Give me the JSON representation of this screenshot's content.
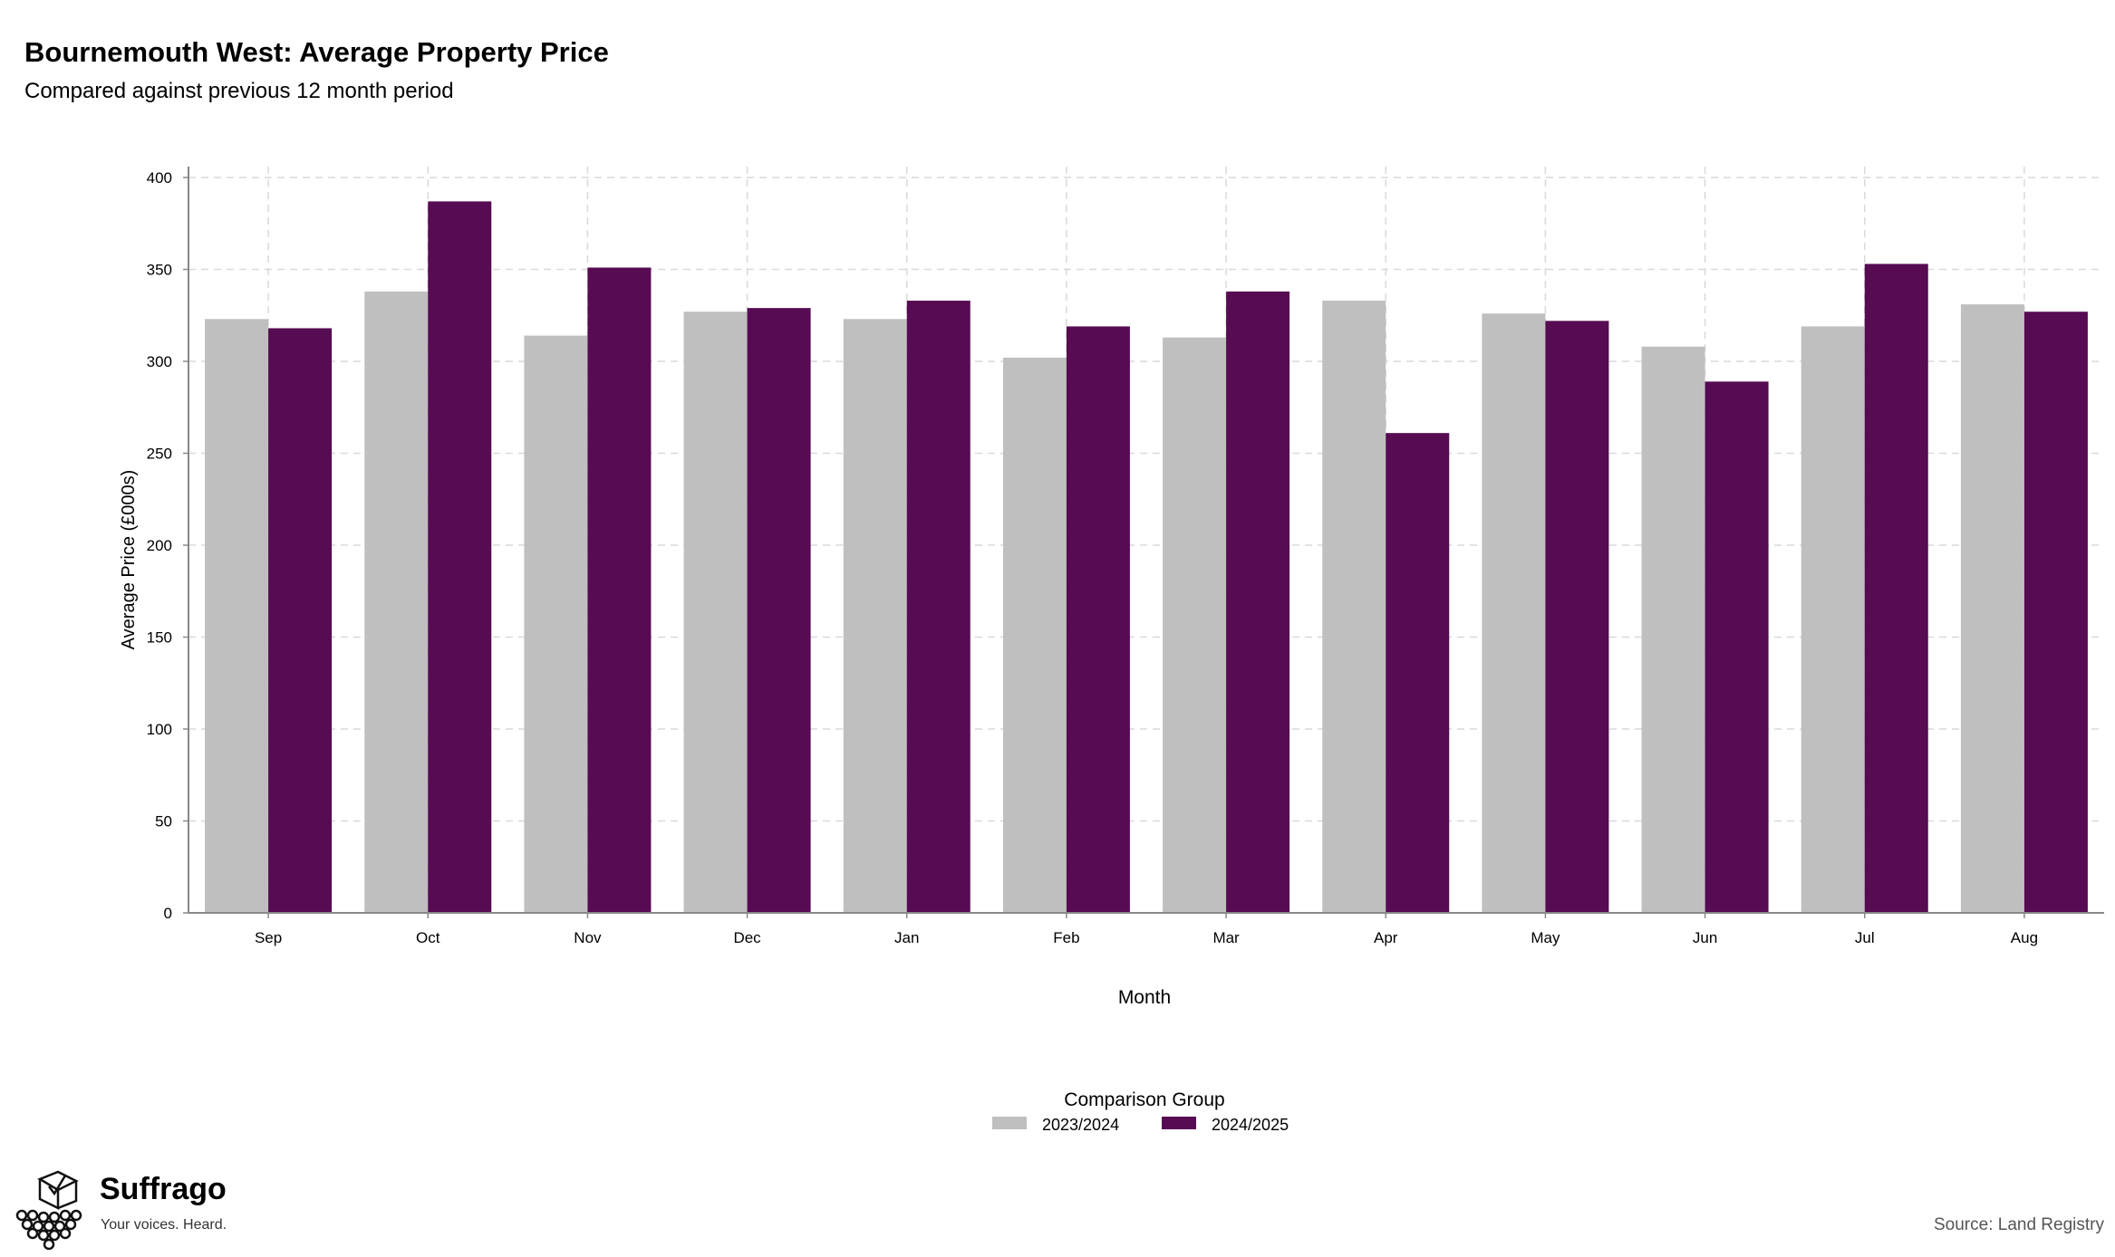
{
  "title": "Bournemouth West: Average Property Price",
  "subtitle": "Compared against previous 12 month period",
  "source": "Source: Land Registry",
  "brand": {
    "name": "Suffrago",
    "tagline": "Your voices. Heard.",
    "icon": "ballot-box-crowd-logo"
  },
  "chart_data": {
    "type": "bar",
    "xlabel": "Month",
    "ylabel": "Average Price (£000s)",
    "ylim": [
      0,
      400
    ],
    "yticks": [
      0,
      50,
      100,
      150,
      200,
      250,
      300,
      350,
      400
    ],
    "grid": true,
    "legend_title": "Comparison Group",
    "legend_position": "bottom",
    "categories": [
      "Sep",
      "Oct",
      "Nov",
      "Dec",
      "Jan",
      "Feb",
      "Mar",
      "Apr",
      "May",
      "Jun",
      "Jul",
      "Aug"
    ],
    "series": [
      {
        "name": "2023/2024",
        "color": "#bfbfbf",
        "values": [
          323,
          338,
          314,
          327,
          323,
          302,
          313,
          333,
          326,
          308,
          319,
          331
        ]
      },
      {
        "name": "2024/2025",
        "color": "#560b52",
        "values": [
          318,
          387,
          351,
          329,
          333,
          319,
          338,
          261,
          322,
          289,
          353,
          327
        ]
      }
    ]
  }
}
